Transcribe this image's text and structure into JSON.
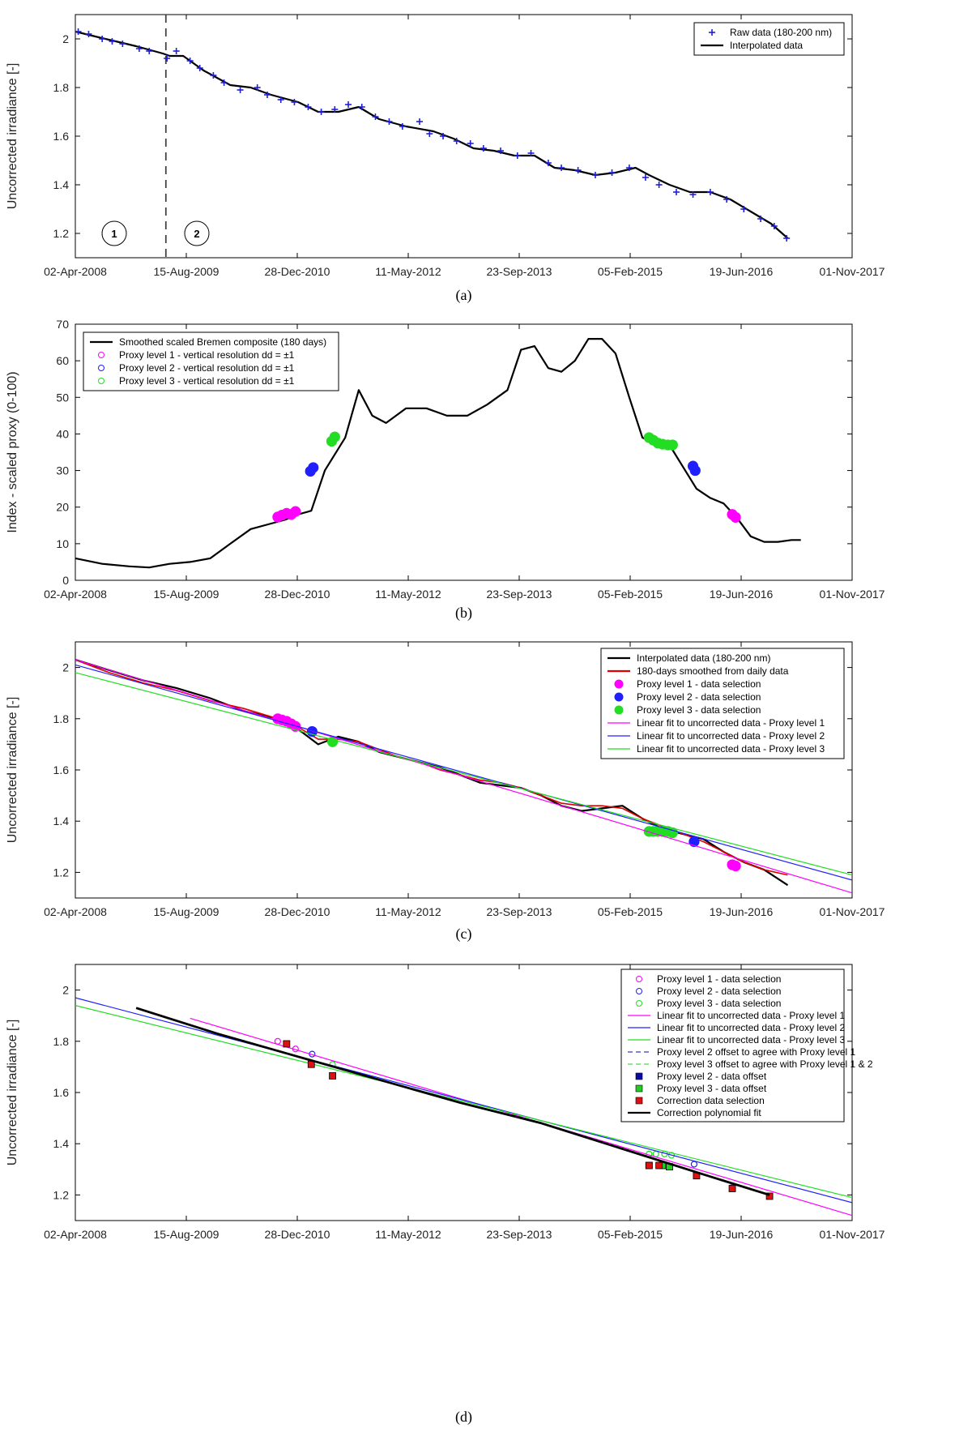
{
  "date_ticks": [
    "02-Apr-2008",
    "15-Aug-2009",
    "28-Dec-2010",
    "11-May-2012",
    "23-Sep-2013",
    "05-Feb-2015",
    "19-Jun-2016",
    "01-Nov-2017"
  ],
  "colors": {
    "raw": "#1f1fd6",
    "interp": "#000000",
    "smooth": "#e00000",
    "lvl1": "#ff00ff",
    "lvl2": "#2020ff",
    "lvl3": "#22dd22",
    "corr": "#dd1111",
    "offset2": "#0a0aa8",
    "offset3": "#22cc22"
  },
  "chart_data": [
    {
      "type": "scatter",
      "caption": "(a)",
      "ylabel": "Uncorrected irradiance [-]",
      "xlim": [
        "2008-04-02",
        "2017-11-01"
      ],
      "ylim": [
        1.1,
        2.1
      ],
      "yticks": [
        "1.2",
        "1.4",
        "1.6",
        "1.8",
        "2"
      ],
      "region_labels": [
        "1",
        "2"
      ],
      "vertical_line_date": "2009-05-15",
      "legend": [
        "Raw data (180-200 nm)",
        "Interpolated data"
      ],
      "series": [
        {
          "name": "Interpolated data",
          "kind": "line",
          "x": [
            "2008-04-02",
            "2008-07-01",
            "2008-10-01",
            "2009-01-01",
            "2009-05-01",
            "2009-06-01",
            "2009-08-01",
            "2009-11-01",
            "2010-03-01",
            "2010-06-01",
            "2010-09-01",
            "2011-01-01",
            "2011-04-01",
            "2011-07-01",
            "2011-10-01",
            "2012-01-01",
            "2012-05-01",
            "2012-09-01",
            "2012-12-01",
            "2013-03-01",
            "2013-06-01",
            "2013-09-01",
            "2013-12-01",
            "2014-03-01",
            "2014-06-01",
            "2014-09-01",
            "2014-12-01",
            "2015-03-01",
            "2015-05-01",
            "2015-08-01",
            "2015-11-01",
            "2016-02-01",
            "2016-05-01",
            "2016-08-01",
            "2016-11-01",
            "2017-01-15"
          ],
          "y": [
            2.03,
            2.01,
            1.99,
            1.97,
            1.94,
            1.93,
            1.93,
            1.87,
            1.81,
            1.8,
            1.77,
            1.74,
            1.7,
            1.7,
            1.72,
            1.67,
            1.64,
            1.62,
            1.59,
            1.55,
            1.54,
            1.52,
            1.52,
            1.47,
            1.46,
            1.44,
            1.45,
            1.47,
            1.44,
            1.4,
            1.37,
            1.37,
            1.34,
            1.29,
            1.24,
            1.18
          ]
        },
        {
          "name": "Raw data (180-200 nm)",
          "kind": "marker",
          "x": [
            "2008-04-15",
            "2008-06-01",
            "2008-08-01",
            "2008-09-15",
            "2008-11-01",
            "2009-01-15",
            "2009-03-01",
            "2009-05-20",
            "2009-07-01",
            "2009-09-01",
            "2009-10-15",
            "2009-12-15",
            "2010-02-01",
            "2010-04-15",
            "2010-07-01",
            "2010-08-15",
            "2010-10-15",
            "2010-12-15",
            "2011-02-15",
            "2011-04-15",
            "2011-06-15",
            "2011-08-15",
            "2011-10-15",
            "2011-12-15",
            "2012-02-15",
            "2012-04-15",
            "2012-07-01",
            "2012-08-15",
            "2012-10-15",
            "2012-12-15",
            "2013-02-15",
            "2013-04-15",
            "2013-07-01",
            "2013-09-15",
            "2013-11-15",
            "2014-02-01",
            "2014-04-01",
            "2014-06-15",
            "2014-09-01",
            "2014-11-15",
            "2015-02-01",
            "2015-04-15",
            "2015-06-15",
            "2015-09-01",
            "2015-11-15",
            "2016-02-01",
            "2016-04-15",
            "2016-07-01",
            "2016-09-15",
            "2016-11-15",
            "2017-01-10"
          ],
          "y": [
            2.03,
            2.02,
            2.0,
            1.99,
            1.98,
            1.96,
            1.95,
            1.92,
            1.95,
            1.91,
            1.88,
            1.85,
            1.82,
            1.79,
            1.8,
            1.77,
            1.75,
            1.74,
            1.72,
            1.7,
            1.71,
            1.73,
            1.72,
            1.68,
            1.66,
            1.64,
            1.66,
            1.61,
            1.6,
            1.58,
            1.57,
            1.55,
            1.54,
            1.52,
            1.53,
            1.49,
            1.47,
            1.46,
            1.44,
            1.45,
            1.47,
            1.43,
            1.4,
            1.37,
            1.36,
            1.37,
            1.34,
            1.3,
            1.26,
            1.23,
            1.18
          ]
        }
      ]
    },
    {
      "type": "line",
      "caption": "(b)",
      "ylabel": "Index - scaled proxy (0-100)",
      "xlim": [
        "2008-04-02",
        "2017-11-01"
      ],
      "ylim": [
        0,
        70
      ],
      "yticks": [
        "0",
        "10",
        "20",
        "30",
        "40",
        "50",
        "60",
        "70"
      ],
      "legend": [
        "Smoothed scaled Bremen composite (180 days)",
        "Proxy level 1 - vertical resolution dd = ±1",
        "Proxy level 2 - vertical resolution dd = ±1",
        "Proxy level 3 - vertical resolution dd = ±1"
      ],
      "series": [
        {
          "name": "Smoothed scaled Bremen composite (180 days)",
          "x": [
            "2008-04-02",
            "2008-08-01",
            "2008-12-01",
            "2009-03-01",
            "2009-06-01",
            "2009-09-01",
            "2009-12-01",
            "2010-03-01",
            "2010-06-01",
            "2010-09-01",
            "2010-11-01",
            "2011-01-01",
            "2011-03-01",
            "2011-05-01",
            "2011-08-01",
            "2011-10-01",
            "2011-12-01",
            "2012-02-01",
            "2012-05-01",
            "2012-08-01",
            "2012-11-01",
            "2013-02-01",
            "2013-05-01",
            "2013-08-01",
            "2013-10-01",
            "2013-12-01",
            "2014-02-01",
            "2014-04-01",
            "2014-06-01",
            "2014-08-01",
            "2014-10-01",
            "2014-12-01",
            "2015-02-01",
            "2015-04-01",
            "2015-06-01",
            "2015-08-01",
            "2015-10-01",
            "2015-12-01",
            "2016-02-01",
            "2016-04-01",
            "2016-06-01",
            "2016-08-01",
            "2016-10-01",
            "2016-12-01",
            "2017-02-01",
            "2017-03-15"
          ],
          "y": [
            6,
            4.5,
            3.8,
            3.5,
            4.5,
            5,
            6,
            10,
            14,
            15.5,
            16.5,
            18,
            19,
            30,
            39,
            52,
            45,
            43,
            47,
            47,
            45,
            45,
            48,
            52,
            63,
            64,
            58,
            57,
            60,
            66,
            66,
            62,
            50,
            39,
            37,
            37,
            31,
            25,
            22.5,
            21,
            17,
            12,
            10.5,
            10.5,
            11,
            11
          ]
        },
        {
          "name": "Proxy level 1 - vertical resolution dd = ±1",
          "kind": "points",
          "x": [
            "2010-10-01",
            "2010-10-20",
            "2010-11-10",
            "2010-12-01",
            "2010-12-20",
            "2016-05-10",
            "2016-05-25"
          ],
          "y": [
            17.3,
            17.8,
            18.3,
            18.0,
            18.8,
            18.0,
            17.2
          ]
        },
        {
          "name": "Proxy level 2 - vertical resolution dd = ±1",
          "kind": "points",
          "x": [
            "2011-02-25",
            "2011-03-10",
            "2015-11-15",
            "2015-11-25"
          ],
          "y": [
            29.8,
            30.8,
            31.2,
            30.0
          ]
        },
        {
          "name": "Proxy level 3 - vertical resolution dd = ±1",
          "kind": "points",
          "x": [
            "2011-06-01",
            "2011-06-15",
            "2015-05-01",
            "2015-05-20",
            "2015-06-10",
            "2015-07-01",
            "2015-07-25",
            "2015-08-15"
          ],
          "y": [
            38.0,
            39.2,
            39.0,
            38.3,
            37.5,
            37.2,
            37.0,
            37.0
          ]
        }
      ]
    },
    {
      "type": "line",
      "caption": "(c)",
      "ylabel": "Uncorrected irradiance [-]",
      "xlim": [
        "2008-04-02",
        "2017-11-01"
      ],
      "ylim": [
        1.1,
        2.1
      ],
      "yticks": [
        "1.2",
        "1.4",
        "1.6",
        "1.8",
        "2"
      ],
      "legend": [
        "Interpolated data (180-200 nm)",
        "180-days smoothed from daily data",
        "Proxy level 1 - data selection",
        "Proxy level 2 - data selection",
        "Proxy level 3 - data selection",
        "Linear fit to uncorrected data - Proxy level 1",
        "Linear fit to uncorrected data - Proxy level 2",
        "Linear fit to uncorrected data - Proxy level 3"
      ],
      "series": [
        {
          "name": "Interpolated data (180-200 nm)",
          "x": [
            "2008-04-02",
            "2008-09-01",
            "2009-02-01",
            "2009-07-01",
            "2009-12-01",
            "2010-05-01",
            "2010-10-01",
            "2011-01-15",
            "2011-04-01",
            "2011-07-01",
            "2011-10-01",
            "2012-01-01",
            "2012-04-01",
            "2012-07-01",
            "2012-10-01",
            "2013-01-01",
            "2013-04-01",
            "2013-07-01",
            "2013-10-01",
            "2014-01-01",
            "2014-04-01",
            "2014-07-01",
            "2014-10-01",
            "2015-01-01",
            "2015-04-01",
            "2015-07-01",
            "2015-10-01",
            "2016-01-01",
            "2016-04-01",
            "2016-07-01",
            "2016-10-01",
            "2017-01-15"
          ],
          "y": [
            2.03,
            1.99,
            1.95,
            1.92,
            1.88,
            1.83,
            1.8,
            1.75,
            1.7,
            1.73,
            1.71,
            1.67,
            1.65,
            1.63,
            1.61,
            1.58,
            1.55,
            1.54,
            1.53,
            1.5,
            1.46,
            1.44,
            1.45,
            1.46,
            1.41,
            1.37,
            1.35,
            1.33,
            1.28,
            1.24,
            1.21,
            1.15
          ]
        },
        {
          "name": "180-days smoothed from daily data",
          "x": [
            "2008-04-02",
            "2008-09-01",
            "2009-02-01",
            "2009-07-01",
            "2009-12-01",
            "2010-05-01",
            "2010-10-01",
            "2011-01-15",
            "2011-04-01",
            "2011-07-01",
            "2011-10-01",
            "2012-01-01",
            "2012-04-01",
            "2012-07-01",
            "2012-10-01",
            "2013-01-01",
            "2013-04-01",
            "2013-07-01",
            "2013-10-01",
            "2014-01-01",
            "2014-04-01",
            "2014-07-01",
            "2014-10-01",
            "2015-01-01",
            "2015-04-01",
            "2015-07-01",
            "2015-10-01",
            "2016-01-01",
            "2016-04-01",
            "2016-07-01",
            "2016-10-01",
            "2017-01-15"
          ],
          "y": [
            2.03,
            1.98,
            1.94,
            1.91,
            1.87,
            1.84,
            1.8,
            1.76,
            1.72,
            1.72,
            1.71,
            1.68,
            1.65,
            1.63,
            1.6,
            1.58,
            1.56,
            1.55,
            1.53,
            1.5,
            1.47,
            1.46,
            1.46,
            1.45,
            1.41,
            1.38,
            1.35,
            1.32,
            1.28,
            1.24,
            1.21,
            1.19
          ]
        },
        {
          "name": "Proxy level 1 - data selection",
          "kind": "points",
          "x": [
            "2010-10-01",
            "2010-10-20",
            "2010-11-10",
            "2010-12-01",
            "2010-12-20",
            "2016-05-10",
            "2016-05-25"
          ],
          "y": [
            1.8,
            1.795,
            1.79,
            1.78,
            1.77,
            1.23,
            1.225
          ]
        },
        {
          "name": "Proxy level 2 - data selection",
          "kind": "points",
          "x": [
            "2011-03-05",
            "2015-11-20"
          ],
          "y": [
            1.75,
            1.32
          ]
        },
        {
          "name": "Proxy level 3 - data selection",
          "kind": "points",
          "x": [
            "2011-06-05",
            "2015-05-01",
            "2015-05-20",
            "2015-06-10",
            "2015-07-01",
            "2015-07-25",
            "2015-08-15"
          ],
          "y": [
            1.71,
            1.36,
            1.36,
            1.36,
            1.36,
            1.36,
            1.355
          ]
        },
        {
          "name": "Linear fit to uncorrected data - Proxy level 1",
          "kind": "fit",
          "x": [
            "2008-04-02",
            "2017-11-01"
          ],
          "y": [
            2.03,
            1.12
          ]
        },
        {
          "name": "Linear fit to uncorrected data - Proxy level 2",
          "kind": "fit",
          "x": [
            "2008-04-02",
            "2017-11-01"
          ],
          "y": [
            2.01,
            1.17
          ]
        },
        {
          "name": "Linear fit to uncorrected data - Proxy level 3",
          "kind": "fit",
          "x": [
            "2008-04-02",
            "2017-11-01"
          ],
          "y": [
            1.98,
            1.19
          ]
        }
      ]
    },
    {
      "type": "line",
      "caption": "(d)",
      "ylabel": "Uncorrected irradiance [-]",
      "xlim": [
        "2008-04-02",
        "2017-11-01"
      ],
      "ylim": [
        1.1,
        2.1
      ],
      "yticks": [
        "1.2",
        "1.4",
        "1.6",
        "1.8",
        "2"
      ],
      "legend": [
        "Proxy level 1 - data selection",
        "Proxy level 2 - data selection",
        "Proxy level 3 - data selection",
        "Linear fit to uncorrected data - Proxy level 1",
        "Linear fit to uncorrected data - Proxy level 2",
        "Linear fit to uncorrected data - Proxy level 3",
        "Proxy level 2 offset to agree with Proxy level 1",
        "Proxy level 3 offset to agree with Proxy level 1 & 2",
        "Proxy level 2 - data offset",
        "Proxy level 3 - data offset",
        "Correction data selection",
        "Correction polynomial fit"
      ],
      "series": [
        {
          "name": "Proxy level 1 - data selection",
          "kind": "points",
          "x": [
            "2010-10-01",
            "2010-11-10",
            "2010-12-20",
            "2016-05-10"
          ],
          "y": [
            1.8,
            1.79,
            1.77,
            1.23
          ]
        },
        {
          "name": "Proxy level 2 - data selection",
          "kind": "points",
          "x": [
            "2011-03-05",
            "2015-11-20"
          ],
          "y": [
            1.75,
            1.32
          ]
        },
        {
          "name": "Proxy level 3 - data selection",
          "kind": "points",
          "x": [
            "2011-06-05",
            "2015-05-01",
            "2015-06-01",
            "2015-07-10",
            "2015-08-10"
          ],
          "y": [
            1.71,
            1.36,
            1.36,
            1.36,
            1.355
          ]
        },
        {
          "name": "Linear fit to uncorrected data - Proxy level 1",
          "kind": "fit",
          "x": [
            "2009-09-01",
            "2017-11-01"
          ],
          "y": [
            1.89,
            1.12
          ]
        },
        {
          "name": "Linear fit to uncorrected data - Proxy level 2",
          "kind": "fit",
          "x": [
            "2008-04-02",
            "2017-11-01"
          ],
          "y": [
            1.97,
            1.17
          ]
        },
        {
          "name": "Linear fit to uncorrected data - Proxy level 3",
          "kind": "fit",
          "x": [
            "2008-04-02",
            "2017-11-01"
          ],
          "y": [
            1.94,
            1.19
          ]
        },
        {
          "name": "Proxy level 2 - data offset",
          "kind": "squares",
          "x": [
            "2015-05-01"
          ],
          "y": [
            1.315
          ]
        },
        {
          "name": "Proxy level 3 - data offset",
          "kind": "squares",
          "x": [
            "2015-07-01",
            "2015-08-01"
          ],
          "y": [
            1.315,
            1.31
          ]
        },
        {
          "name": "Correction data selection",
          "kind": "squares",
          "x": [
            "2010-11-10",
            "2011-03-01",
            "2011-06-05",
            "2015-05-01",
            "2015-06-15",
            "2015-12-01",
            "2016-05-10",
            "2016-10-25"
          ],
          "y": [
            1.79,
            1.71,
            1.665,
            1.315,
            1.315,
            1.275,
            1.225,
            1.195
          ]
        },
        {
          "name": "Correction polynomial fit",
          "x": [
            "2009-01-01",
            "2010-01-01",
            "2011-01-01",
            "2012-01-01",
            "2013-01-01",
            "2014-01-01",
            "2015-01-01",
            "2016-01-01",
            "2016-10-25"
          ],
          "y": [
            1.93,
            1.83,
            1.74,
            1.65,
            1.56,
            1.48,
            1.38,
            1.28,
            1.2
          ]
        }
      ]
    }
  ]
}
